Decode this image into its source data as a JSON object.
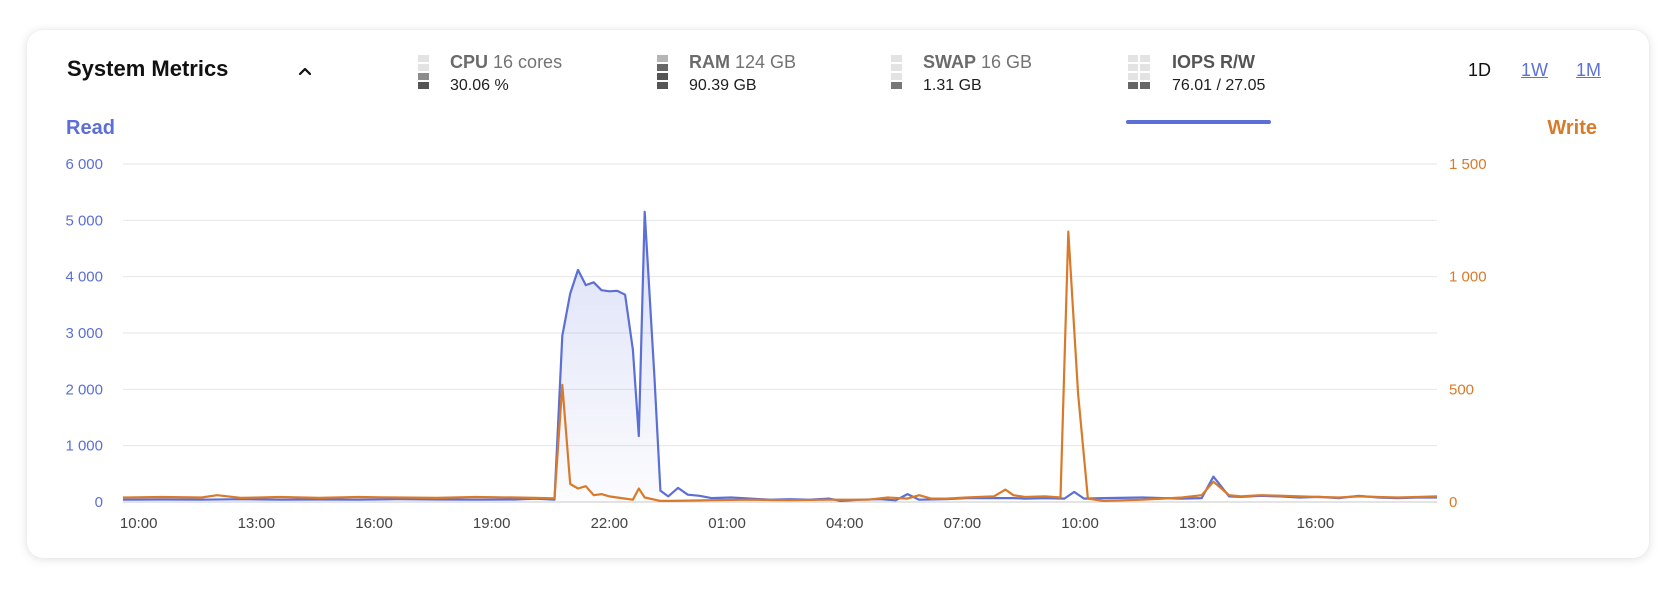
{
  "header": {
    "title": "System Metrics",
    "metrics": [
      {
        "label": "CPU",
        "detail": "16 cores",
        "value": "30.06 %",
        "active": false
      },
      {
        "label": "RAM",
        "detail": "124 GB",
        "value": "90.39 GB",
        "active": false
      },
      {
        "label": "SWAP",
        "detail": "16 GB",
        "value": "1.31 GB",
        "active": false
      },
      {
        "label": "IOPS R/W",
        "detail": "",
        "value": "76.01 / 27.05",
        "active": true
      }
    ],
    "ranges": [
      "1D",
      "1W",
      "1M"
    ],
    "selected_range": "1D"
  },
  "colors": {
    "read": "#5b6fd6",
    "write": "#d97a2b",
    "grid": "#e6e6e6"
  },
  "chart_data": {
    "type": "line",
    "left_axis_title": "Read",
    "right_axis_title": "Write",
    "left_ylim": [
      0,
      6000
    ],
    "right_ylim": [
      0,
      1500
    ],
    "left_ticks": [
      "6 000",
      "5 000",
      "4 000",
      "3 000",
      "2 000",
      "1 000",
      "0"
    ],
    "right_ticks": [
      "1 500",
      "1 000",
      "500",
      "0"
    ],
    "x_ticks": [
      "10:00",
      "13:00",
      "16:00",
      "19:00",
      "22:00",
      "01:00",
      "04:00",
      "07:00",
      "10:00",
      "13:00",
      "16:00"
    ],
    "x_tick_positions_hours": [
      0.4,
      3.4,
      6.4,
      9.4,
      12.4,
      15.4,
      18.4,
      21.4,
      24.4,
      27.4,
      30.4
    ],
    "x_range_hours": [
      0,
      33.5
    ],
    "grid": true,
    "series": [
      {
        "name": "Read",
        "axis": "left",
        "fill": true,
        "points": [
          [
            0,
            40
          ],
          [
            1,
            45
          ],
          [
            2,
            40
          ],
          [
            3,
            50
          ],
          [
            4,
            40
          ],
          [
            5,
            45
          ],
          [
            6,
            40
          ],
          [
            7,
            50
          ],
          [
            8,
            45
          ],
          [
            9,
            40
          ],
          [
            10,
            45
          ],
          [
            10.5,
            60
          ],
          [
            11,
            40
          ],
          [
            11.2,
            2950
          ],
          [
            11.4,
            3700
          ],
          [
            11.6,
            4120
          ],
          [
            11.8,
            3850
          ],
          [
            12.0,
            3900
          ],
          [
            12.2,
            3760
          ],
          [
            12.4,
            3740
          ],
          [
            12.6,
            3750
          ],
          [
            12.8,
            3680
          ],
          [
            13.0,
            2700
          ],
          [
            13.15,
            1170
          ],
          [
            13.3,
            5150
          ],
          [
            13.55,
            2200
          ],
          [
            13.7,
            200
          ],
          [
            13.9,
            100
          ],
          [
            14.15,
            250
          ],
          [
            14.4,
            130
          ],
          [
            14.7,
            110
          ],
          [
            15,
            70
          ],
          [
            15.5,
            80
          ],
          [
            16,
            60
          ],
          [
            16.5,
            40
          ],
          [
            17,
            50
          ],
          [
            17.5,
            40
          ],
          [
            18,
            60
          ],
          [
            18.3,
            20
          ],
          [
            18.8,
            40
          ],
          [
            19.3,
            50
          ],
          [
            19.7,
            30
          ],
          [
            20,
            140
          ],
          [
            20.3,
            40
          ],
          [
            21,
            50
          ],
          [
            21.5,
            70
          ],
          [
            22,
            70
          ],
          [
            22.7,
            70
          ],
          [
            23,
            60
          ],
          [
            23.5,
            70
          ],
          [
            24,
            60
          ],
          [
            24.25,
            180
          ],
          [
            24.5,
            60
          ],
          [
            25,
            70
          ],
          [
            26,
            80
          ],
          [
            26.5,
            70
          ],
          [
            27,
            60
          ],
          [
            27.5,
            70
          ],
          [
            27.8,
            450
          ],
          [
            28.2,
            100
          ],
          [
            28.5,
            90
          ],
          [
            29,
            110
          ],
          [
            29.5,
            100
          ],
          [
            30,
            80
          ],
          [
            30.5,
            90
          ],
          [
            31,
            70
          ],
          [
            31.5,
            110
          ],
          [
            32,
            80
          ],
          [
            32.5,
            70
          ],
          [
            33,
            80
          ],
          [
            33.5,
            80
          ]
        ]
      },
      {
        "name": "Write",
        "axis": "right",
        "fill": false,
        "points": [
          [
            0,
            20
          ],
          [
            1,
            22
          ],
          [
            2,
            20
          ],
          [
            2.4,
            30
          ],
          [
            3,
            18
          ],
          [
            4,
            22
          ],
          [
            5,
            18
          ],
          [
            6,
            22
          ],
          [
            7,
            20
          ],
          [
            8,
            18
          ],
          [
            9,
            22
          ],
          [
            10,
            20
          ],
          [
            10.5,
            18
          ],
          [
            11,
            16
          ],
          [
            11.2,
            520
          ],
          [
            11.4,
            80
          ],
          [
            11.6,
            60
          ],
          [
            11.8,
            70
          ],
          [
            12.0,
            30
          ],
          [
            12.2,
            35
          ],
          [
            12.4,
            25
          ],
          [
            12.6,
            20
          ],
          [
            12.8,
            15
          ],
          [
            13.0,
            10
          ],
          [
            13.15,
            60
          ],
          [
            13.3,
            20
          ],
          [
            13.7,
            5
          ],
          [
            14,
            5
          ],
          [
            15,
            8
          ],
          [
            16,
            10
          ],
          [
            17,
            8
          ],
          [
            18,
            10
          ],
          [
            19,
            10
          ],
          [
            19.5,
            20
          ],
          [
            20,
            15
          ],
          [
            20.3,
            30
          ],
          [
            20.6,
            15
          ],
          [
            21,
            15
          ],
          [
            21.5,
            20
          ],
          [
            22.2,
            25
          ],
          [
            22.5,
            55
          ],
          [
            22.7,
            30
          ],
          [
            23.0,
            22
          ],
          [
            23.5,
            25
          ],
          [
            23.9,
            20
          ],
          [
            24.1,
            1200
          ],
          [
            24.35,
            480
          ],
          [
            24.6,
            15
          ],
          [
            25,
            5
          ],
          [
            26,
            10
          ],
          [
            26.5,
            15
          ],
          [
            27,
            20
          ],
          [
            27.5,
            30
          ],
          [
            27.8,
            90
          ],
          [
            28.2,
            30
          ],
          [
            28.5,
            25
          ],
          [
            29,
            30
          ],
          [
            29.5,
            28
          ],
          [
            30,
            25
          ],
          [
            30.5,
            22
          ],
          [
            31,
            20
          ],
          [
            31.5,
            25
          ],
          [
            32,
            22
          ],
          [
            32.5,
            20
          ],
          [
            33,
            22
          ],
          [
            33.5,
            25
          ]
        ]
      }
    ]
  }
}
